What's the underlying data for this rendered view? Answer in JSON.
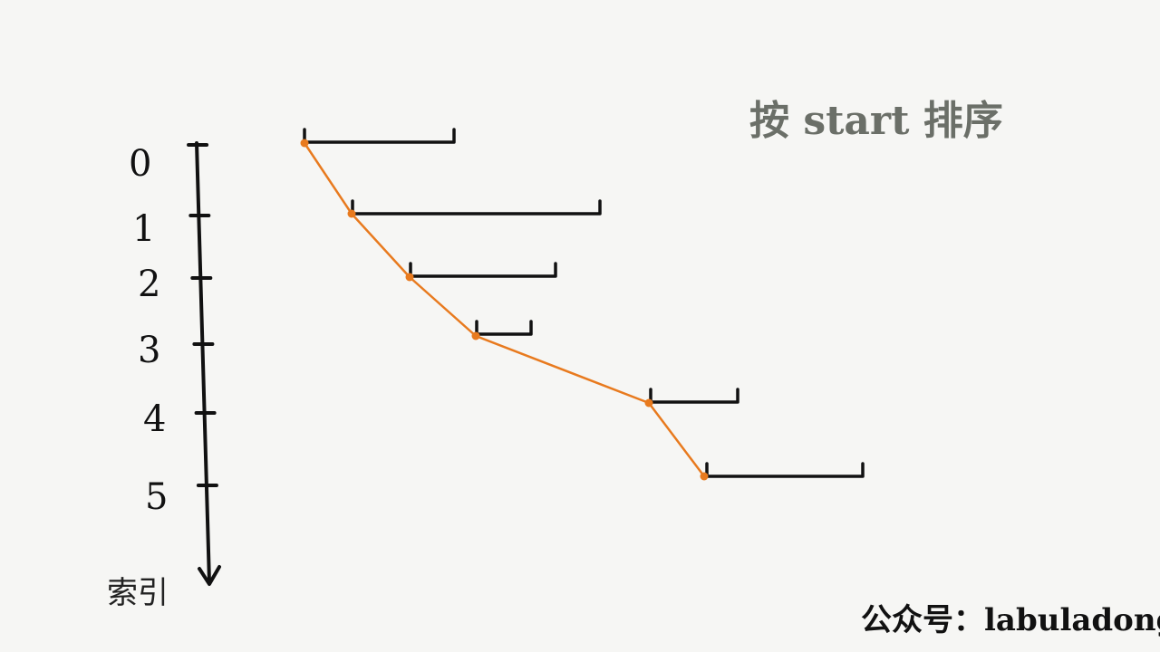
{
  "title": "按 start 排序",
  "axis_label": "索引",
  "credit": "公众号：labuladong",
  "colors": {
    "background": "#f6f6f4",
    "ink": "#111111",
    "path": "#e87a1e",
    "title": "#6b6f68"
  },
  "indices": [
    "0",
    "1",
    "2",
    "3",
    "4",
    "5"
  ],
  "intervals": [
    {
      "index": "0"
    },
    {
      "index": "1"
    },
    {
      "index": "2"
    },
    {
      "index": "3"
    },
    {
      "index": "4"
    },
    {
      "index": "5"
    }
  ]
}
